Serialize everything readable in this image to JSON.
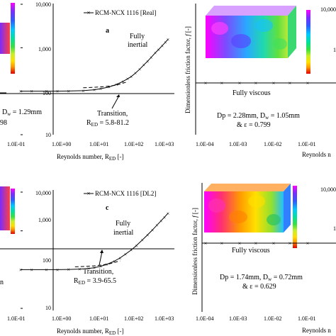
{
  "chart_data": [
    {
      "type": "line",
      "panel_label": "a",
      "legend": "RCM-NCX 1116 [Real]",
      "x_scale": "log",
      "y_scale": "log",
      "xlim": [
        0.1,
        1000
      ],
      "ylim": [
        10,
        10000
      ],
      "x_ticks": [
        "1.0E-01",
        "1.0E+00",
        "1.0E+01",
        "1.0E+02",
        "1.0E+03"
      ],
      "y_ticks": [
        "10,000",
        "1,000",
        "100",
        "10"
      ],
      "xlabel": "Reynolds number, R",
      "xlabel_sub": "ED",
      "xlabel_suffix": " [-]",
      "regime_label_1": "Fully",
      "regime_label_2": "inertial",
      "transition_title": "Transition,",
      "transition_value": " = 5.8-81.2",
      "transition_sub": "ED",
      "transition_prefix": "R",
      "left_note_1_pre": "= 1.29mm",
      "left_note_1_sub": "w",
      "left_note_2": "98",
      "left_note_pre_char": "D",
      "series": [
        {
          "x": [
            0.1,
            0.2,
            0.5,
            1,
            2,
            5,
            10,
            15,
            25,
            40,
            60,
            80,
            100,
            130,
            170,
            220,
            280,
            350,
            450,
            550,
            700,
            850,
            1000
          ],
          "y": [
            100,
            100,
            100,
            100,
            101,
            103,
            108,
            114,
            125,
            143,
            168,
            193,
            216,
            260,
            320,
            400,
            490,
            600,
            760,
            900,
            1120,
            1340,
            1560
          ]
        }
      ],
      "dashed": {
        "x": [
          5,
          10,
          20,
          40,
          80
        ],
        "y": [
          120,
          123,
          128,
          138,
          165
        ]
      },
      "baseline_y": 100
    },
    {
      "type": "line",
      "panel_label": "c",
      "legend": "RCM-NCX 1116 [DL2]",
      "x_scale": "log",
      "y_scale": "log",
      "xlim": [
        0.1,
        1000
      ],
      "ylim": [
        10,
        10000
      ],
      "x_ticks": [
        "1.0E-01",
        "1.0E+00",
        "1.0E+01",
        "1.0E+02",
        "1.0E+03"
      ],
      "y_ticks": [
        "10,000",
        "1,000",
        "100",
        "10"
      ],
      "xlabel": "Reynolds number, R",
      "xlabel_sub": "ED",
      "xlabel_suffix": " [-]",
      "regime_label_1": "Fully",
      "regime_label_2": "inertial",
      "transition_title": "Transition,",
      "transition_value": " = 3.9-65.5",
      "transition_sub": "ED",
      "transition_prefix": "R",
      "left_note_1": "n",
      "series": [
        {
          "x": [
            0.1,
            0.2,
            0.5,
            1,
            2,
            4,
            7,
            10,
            15,
            22,
            35,
            50,
            70,
            100,
            140,
            200,
            280,
            380,
            500,
            650,
            800,
            1000
          ],
          "y": [
            100,
            100,
            100,
            100,
            101,
            103,
            107,
            112,
            122,
            137,
            165,
            200,
            250,
            320,
            420,
            580,
            790,
            1060,
            1400,
            1820,
            2250,
            2850
          ]
        }
      ],
      "dashed": {
        "x": [
          3,
          6,
          12,
          25,
          50
        ],
        "y": [
          118,
          121,
          127,
          140,
          168
        ]
      },
      "baseline_y": 100
    },
    {
      "type": "line",
      "panel_label": "",
      "x_scale": "log",
      "y_scale": "log",
      "x_ticks": [
        "1.0E-04",
        "1.0E-03",
        "1.0E-02",
        "1.0E-01"
      ],
      "y_ticks": [
        "10,000",
        "1"
      ],
      "ylabel": "Dimensionless friction factor, ",
      "ylabel_italic": "f",
      "ylabel_suffix": " [-]",
      "xlabel_partial": "Reynolds n",
      "regime_label": "Fully viscous",
      "note_1": "Dp = 2.28mm, D",
      "note_1_sub": "w",
      "note_1_suffix": " = 1.05mm",
      "note_2": "& ε = 0.799",
      "series": [
        {
          "x": [
            0.0001,
            0.0003,
            0.001,
            0.003,
            0.01,
            0.03,
            0.1
          ],
          "y": [
            1,
            1,
            1,
            1,
            1,
            1,
            1
          ]
        }
      ]
    },
    {
      "type": "line",
      "panel_label": "",
      "x_scale": "log",
      "y_scale": "log",
      "x_ticks": [
        "1.0E-04",
        "1.0E-03",
        "1.0E-02",
        "1.0E-01"
      ],
      "y_ticks": [
        "10,000",
        "1"
      ],
      "ylabel": "Dimensionless friction factor, ",
      "ylabel_italic": "f",
      "ylabel_suffix": " [-]",
      "xlabel_partial": "Reynolds n",
      "regime_label": "Fully viscous",
      "note_1": "Dp = 1.74mm, D",
      "note_1_sub": "w",
      "note_1_suffix": " = 0.72mm",
      "note_2": "& ε = 0.629",
      "series": [
        {
          "x": [
            0.0001,
            0.0003,
            0.001,
            0.003,
            0.01,
            0.03,
            0.1
          ],
          "y": [
            1,
            1,
            1,
            1,
            1,
            1,
            1
          ]
        }
      ]
    }
  ],
  "colors": {
    "axis": "#000000",
    "series": "#000000",
    "colormap": [
      "#ff00ff",
      "#7a2cff",
      "#2f5bff",
      "#00c8ff",
      "#00e0a0",
      "#38e040",
      "#c8ee2a",
      "#ffe000",
      "#ff9a00",
      "#ff2a00",
      "#c00000"
    ]
  }
}
